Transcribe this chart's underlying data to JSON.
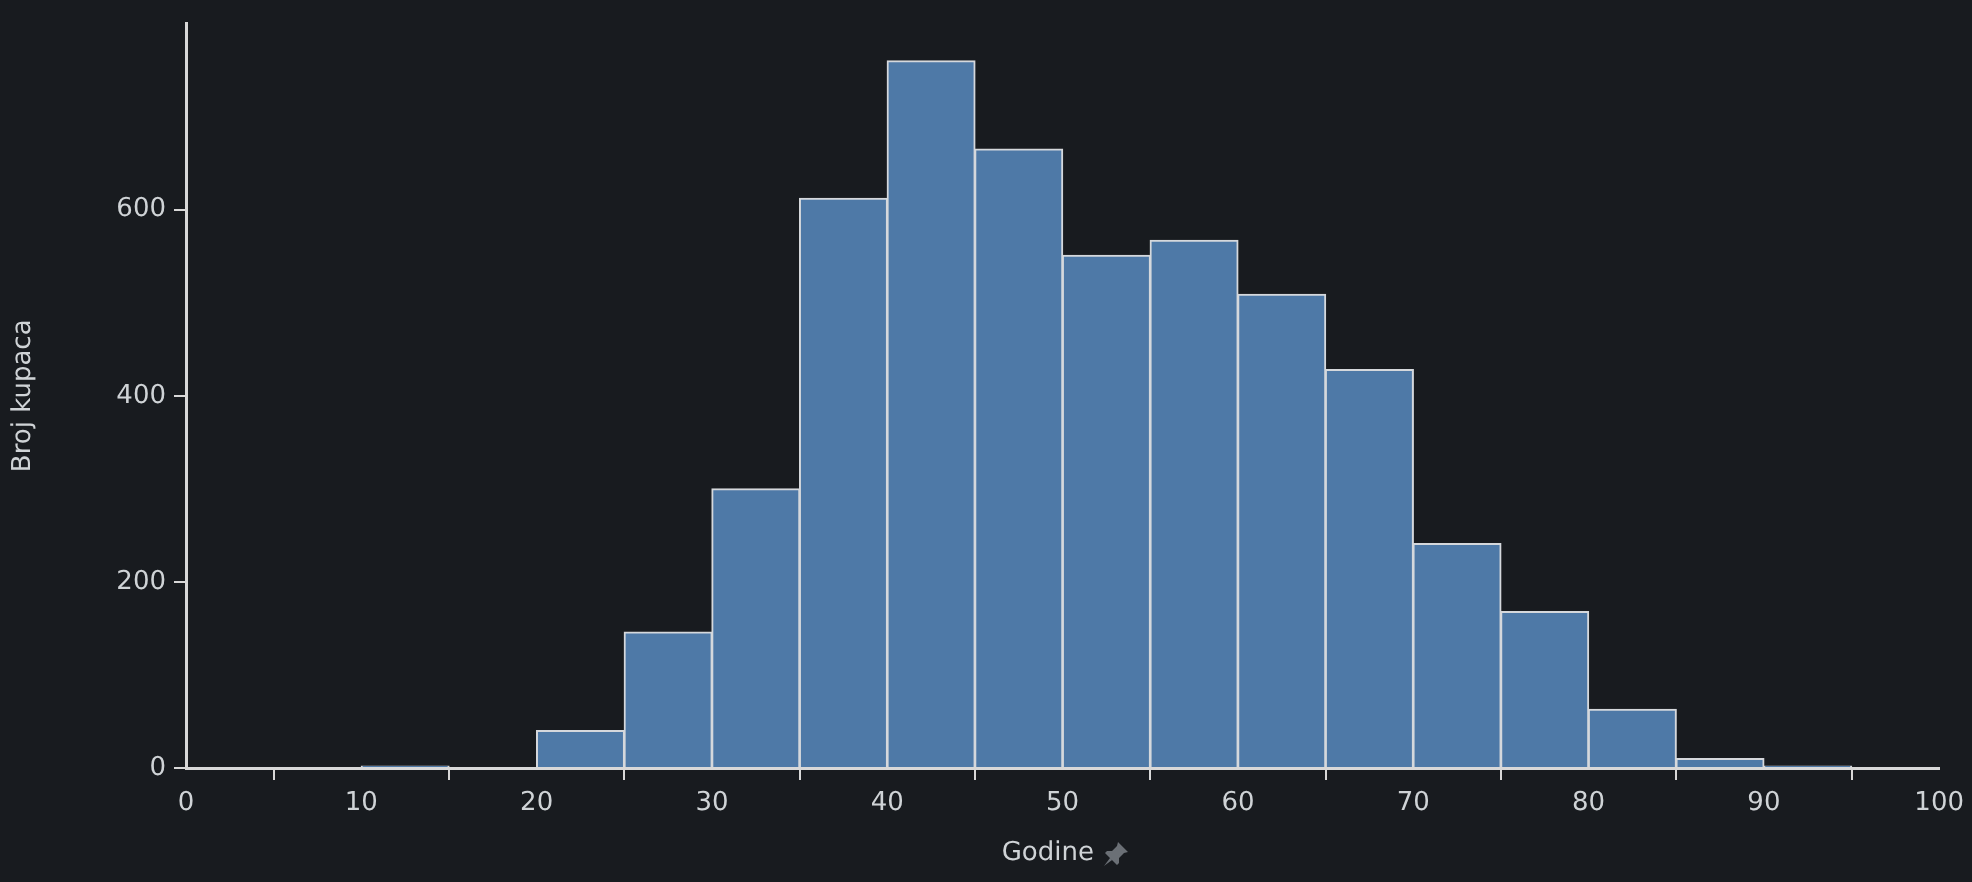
{
  "chart_data": {
    "type": "histogram",
    "xlabel": "Godine",
    "ylabel": "Broj kupaca",
    "bins": [
      0,
      5,
      10,
      15,
      20,
      25,
      30,
      35,
      40,
      45,
      50,
      55,
      60,
      65,
      70,
      75,
      80,
      85,
      90,
      95
    ],
    "values": [
      0,
      0,
      2,
      0,
      40,
      146,
      300,
      612,
      760,
      665,
      551,
      567,
      509,
      428,
      241,
      168,
      63,
      10,
      2
    ],
    "color": "#4e79a7",
    "xlim": [
      0,
      100
    ],
    "xticks": [
      0,
      10,
      20,
      30,
      40,
      50,
      60,
      70,
      80,
      90,
      100
    ],
    "ylim": [
      0,
      800
    ],
    "yticks": [
      0,
      200,
      400,
      600
    ],
    "grid": false,
    "legend": false
  }
}
